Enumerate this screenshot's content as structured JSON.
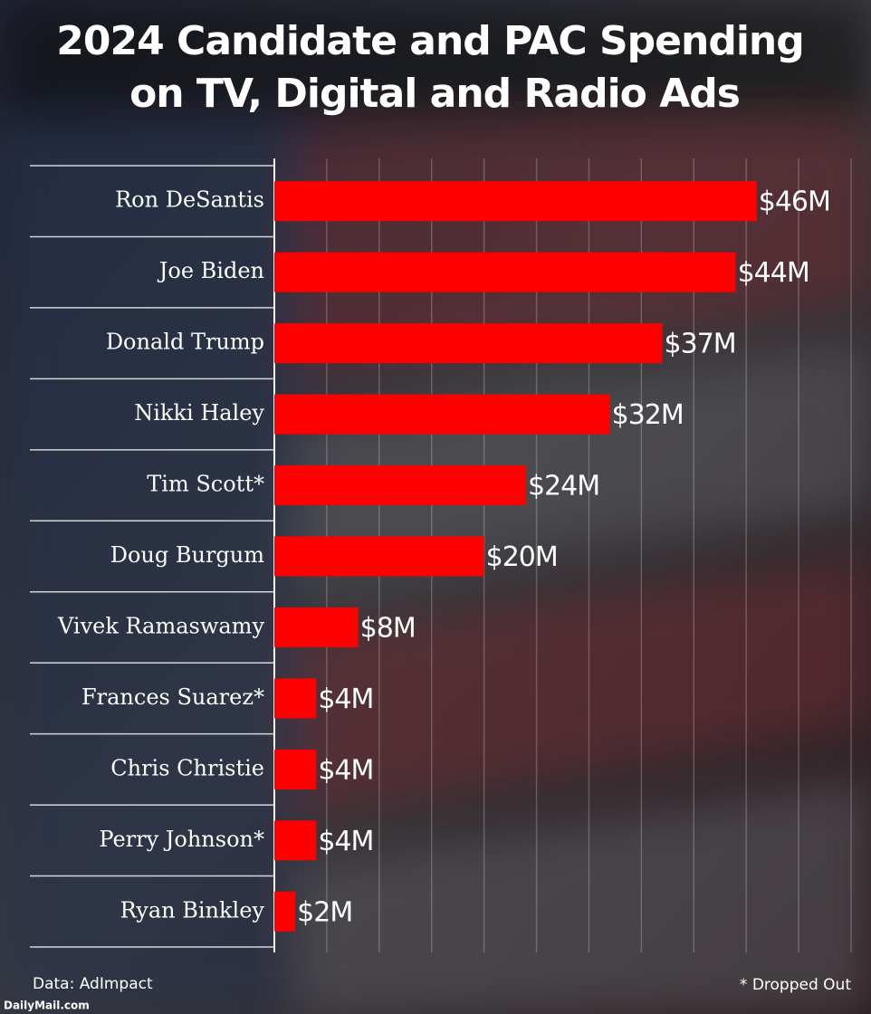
{
  "chart_data": {
    "type": "bar",
    "orientation": "horizontal",
    "title": [
      "2024 Candidate and PAC Spending",
      "on TV, Digital and Radio Ads"
    ],
    "categories": [
      "Ron DeSantis",
      "Joe Biden",
      "Donald Trump",
      "Nikki Haley",
      "Tim Scott*",
      "Doug Burgum",
      "Vivek Ramaswamy",
      "Frances Suarez*",
      "Chris Christie",
      "Perry Johnson*",
      "Ryan Binkley"
    ],
    "values": [
      46,
      44,
      37,
      32,
      24,
      20,
      8,
      4,
      4,
      4,
      2
    ],
    "value_labels": [
      "$46M",
      "$44M",
      "$37M",
      "$32M",
      "$24M",
      "$20M",
      "$8M",
      "$4M",
      "$4M",
      "$4M",
      "$2M"
    ],
    "color": "#ff0000",
    "xlim": [
      0,
      55
    ],
    "xticks": [
      0,
      5,
      10,
      15,
      20,
      25,
      30,
      35,
      40,
      45,
      50,
      55
    ],
    "grid": true,
    "source": "Data: AdImpact",
    "note": "* Dropped Out",
    "credit": "DailyMail.com"
  }
}
